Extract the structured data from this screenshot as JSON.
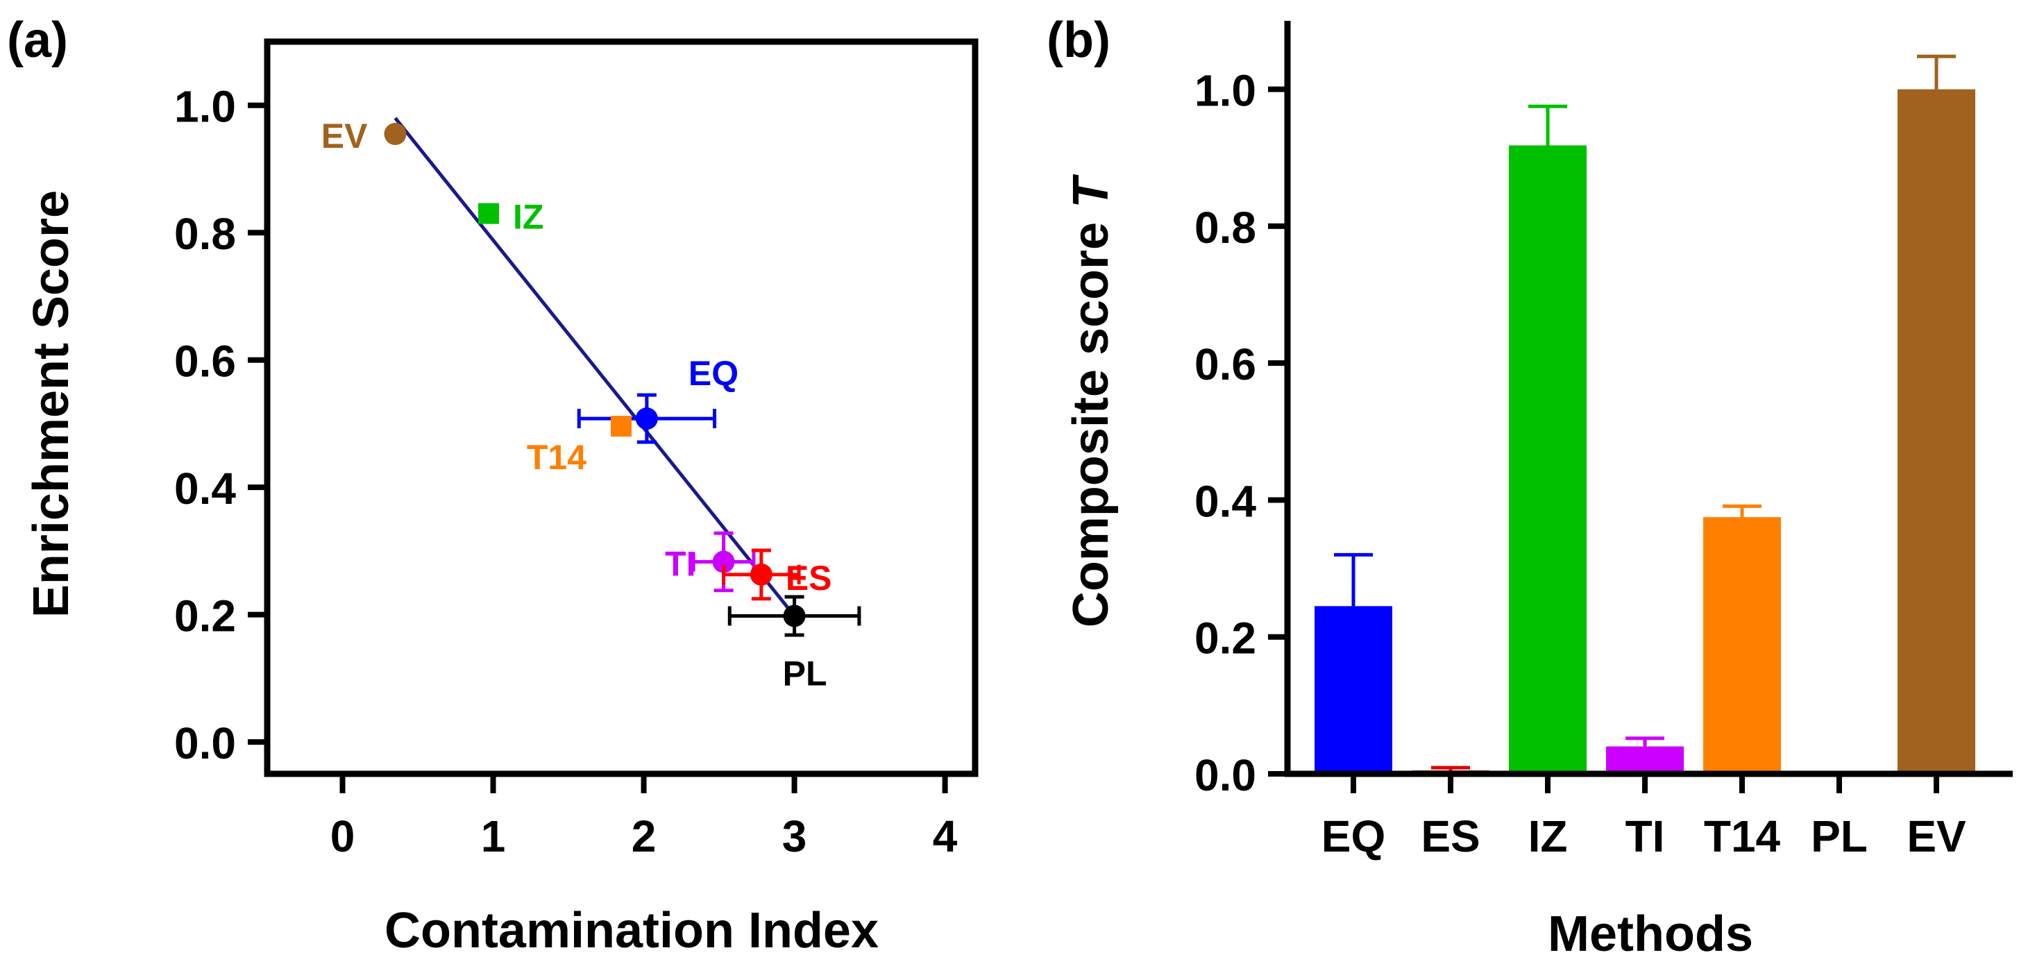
{
  "chart_data": [
    {
      "panel_label": "(a)",
      "type": "scatter",
      "title": "",
      "xlabel": "Contamination Index",
      "ylabel": "Enrichment Score",
      "xlim": [
        -0.5,
        4.2
      ],
      "ylim": [
        -0.05,
        1.1
      ],
      "xticks": [
        0,
        1,
        2,
        3,
        4
      ],
      "xtick_labels": [
        "0",
        "1",
        "2",
        "3",
        "4"
      ],
      "yticks": [
        0.0,
        0.2,
        0.4,
        0.6,
        0.8,
        1.0
      ],
      "ytick_labels": [
        "0.0",
        "0.2",
        "0.4",
        "0.6",
        "0.8",
        "1.0"
      ],
      "grid": false,
      "points": [
        {
          "label": "EV",
          "x": 0.35,
          "y": 0.955,
          "xerr": 0,
          "yerr": 0,
          "color": "#A0621E",
          "label_side": "left"
        },
        {
          "label": "IZ",
          "x": 0.97,
          "y": 0.83,
          "xerr": 0,
          "yerr": 0,
          "color": "#00C000",
          "label_side": "right"
        },
        {
          "label": "EQ",
          "x": 2.02,
          "y": 0.508,
          "xerr": 0.45,
          "yerr": 0.037,
          "color": "#0000FF",
          "label_side": "upper-right"
        },
        {
          "label": "T14",
          "x": 1.85,
          "y": 0.496,
          "xerr": 0,
          "yerr": 0,
          "color": "#FF7F00",
          "label_side": "lower-left"
        },
        {
          "label": "TI",
          "x": 2.53,
          "y": 0.283,
          "xerr": 0.2,
          "yerr": 0.045,
          "color": "#CC00FF",
          "label_side": "left"
        },
        {
          "label": "ES",
          "x": 2.78,
          "y": 0.263,
          "xerr": 0.25,
          "yerr": 0.038,
          "color": "#FF0000",
          "label_side": "right"
        },
        {
          "label": "PL",
          "x": 3.0,
          "y": 0.198,
          "xerr": 0.43,
          "yerr": 0.03,
          "color": "#000000",
          "label_side": "below"
        }
      ],
      "fit_line": {
        "x": [
          0.35,
          3.0
        ],
        "y": [
          0.98,
          0.198
        ],
        "color": "#1A1A8C"
      }
    },
    {
      "panel_label": "(b)",
      "type": "bar",
      "title": "",
      "xlabel": "Methods",
      "ylabel": "Composite score ",
      "ylabel_italic": "T",
      "ylim": [
        0.0,
        1.1
      ],
      "yticks": [
        0.0,
        0.2,
        0.4,
        0.6,
        0.8,
        1.0
      ],
      "ytick_labels": [
        "0.0",
        "0.2",
        "0.4",
        "0.6",
        "0.8",
        "1.0"
      ],
      "categories": [
        "EQ",
        "ES",
        "IZ",
        "TI",
        "T14",
        "PL",
        "EV"
      ],
      "values": [
        0.245,
        0.005,
        0.918,
        0.04,
        0.375,
        0.0,
        1.0
      ],
      "errors": [
        0.075,
        0.004,
        0.057,
        0.012,
        0.016,
        0.0,
        0.048
      ],
      "colors": [
        "#0000FF",
        "#E00000",
        "#00C000",
        "#CC00FF",
        "#FF8000",
        "#000000",
        "#A0621E"
      ],
      "grid": false
    }
  ]
}
